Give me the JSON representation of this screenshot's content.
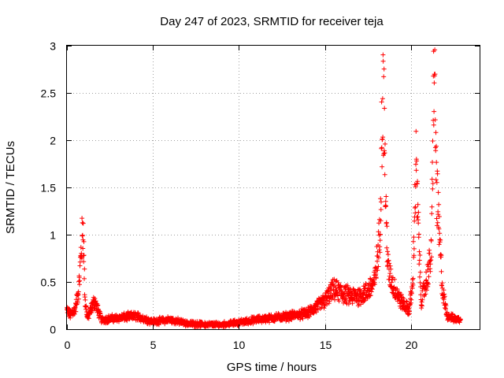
{
  "chart_data": {
    "type": "scatter",
    "title": "Day 247 of 2023, SRMTID for receiver teja",
    "xlabel": "GPS time / hours",
    "ylabel": "SRMTID / TECUs",
    "xlim": [
      0,
      24
    ],
    "ylim": [
      0,
      3
    ],
    "xticks": [
      0,
      5,
      10,
      15,
      20
    ],
    "yticks": [
      0,
      0.5,
      1,
      1.5,
      2,
      2.5,
      3
    ],
    "xtick_labels": [
      "0",
      "5",
      "10",
      "15",
      "20"
    ],
    "ytick_labels": [
      "0",
      "0.5",
      "1",
      "1.5",
      "2",
      "2.5",
      "3"
    ],
    "grid": true,
    "marker": "+",
    "series_color": "#ff0000",
    "envelope": {
      "note": "Approximate shape of the dense point cloud: [hour, typical SRMTID]",
      "points": [
        [
          0.0,
          0.2
        ],
        [
          0.2,
          0.15
        ],
        [
          0.5,
          0.22
        ],
        [
          0.7,
          0.45
        ],
        [
          0.85,
          0.9
        ],
        [
          0.95,
          1.07
        ],
        [
          1.05,
          0.3
        ],
        [
          1.2,
          0.12
        ],
        [
          1.6,
          0.3
        ],
        [
          2.0,
          0.1
        ],
        [
          3.0,
          0.12
        ],
        [
          4.0,
          0.14
        ],
        [
          5.0,
          0.08
        ],
        [
          6.0,
          0.1
        ],
        [
          7.0,
          0.06
        ],
        [
          8.0,
          0.05
        ],
        [
          9.0,
          0.05
        ],
        [
          10.0,
          0.07
        ],
        [
          11.0,
          0.1
        ],
        [
          12.0,
          0.12
        ],
        [
          13.0,
          0.14
        ],
        [
          14.0,
          0.17
        ],
        [
          15.0,
          0.3
        ],
        [
          15.5,
          0.42
        ],
        [
          16.0,
          0.38
        ],
        [
          16.5,
          0.35
        ],
        [
          17.0,
          0.35
        ],
        [
          17.5,
          0.4
        ],
        [
          17.9,
          0.5
        ],
        [
          18.2,
          1.0
        ],
        [
          18.35,
          2.5
        ],
        [
          18.45,
          2.3
        ],
        [
          18.55,
          1.2
        ],
        [
          18.7,
          0.6
        ],
        [
          19.0,
          0.45
        ],
        [
          19.4,
          0.3
        ],
        [
          19.9,
          0.2
        ],
        [
          20.1,
          0.45
        ],
        [
          20.3,
          1.72
        ],
        [
          20.45,
          1.0
        ],
        [
          20.6,
          0.3
        ],
        [
          20.9,
          0.5
        ],
        [
          21.2,
          0.8
        ],
        [
          21.35,
          2.85
        ],
        [
          21.5,
          1.5
        ],
        [
          21.65,
          1.0
        ],
        [
          21.85,
          0.4
        ],
        [
          22.1,
          0.15
        ],
        [
          22.5,
          0.11
        ],
        [
          22.9,
          0.1
        ]
      ]
    }
  }
}
